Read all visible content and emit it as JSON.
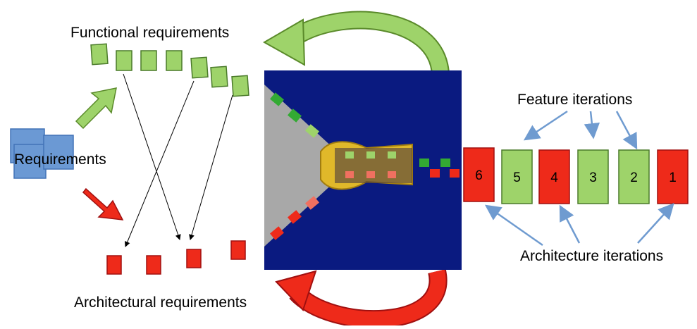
{
  "labels": {
    "functional": "Functional requirements",
    "requirements": "Requirements",
    "architectural": "Architectural requirements",
    "feature_iterations": "Feature iterations",
    "architecture_iterations": "Architecture iterations"
  },
  "iterations": [
    "6",
    "5",
    "4",
    "3",
    "2",
    "1"
  ]
}
